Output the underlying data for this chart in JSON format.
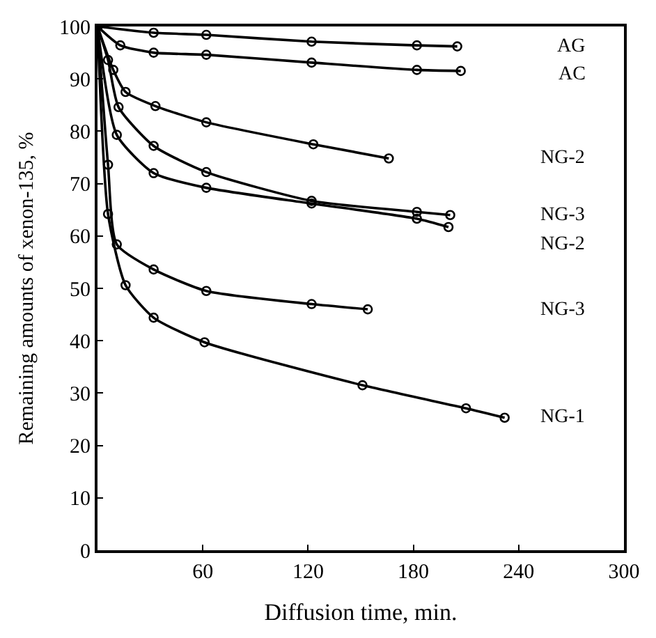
{
  "chart_data": {
    "type": "line",
    "xlabel": "Diffusion time, min.",
    "ylabel": "Remaining amounts of xenon-135, %",
    "xlim": [
      0,
      300
    ],
    "xticks": [
      60,
      120,
      180,
      240,
      300
    ],
    "ylim": [
      0,
      100
    ],
    "yticks": [
      0,
      10,
      20,
      30,
      40,
      50,
      60,
      70,
      80,
      90,
      100
    ],
    "legend": false,
    "marker": "circle",
    "line_style": "solid",
    "series": [
      {
        "name": "AG",
        "color": "#000000",
        "x": [
          0,
          32,
          62,
          122,
          182,
          205
        ],
        "values": [
          100,
          98.8,
          98.4,
          97.1,
          96.4,
          96.2
        ]
      },
      {
        "name": "AC",
        "color": "#000000",
        "x": [
          0,
          13,
          32,
          62,
          122,
          182,
          207
        ],
        "values": [
          100,
          96.4,
          95.0,
          94.6,
          93.1,
          91.7,
          91.5
        ]
      },
      {
        "name": "NG-2",
        "color": "#000000",
        "x": [
          0,
          9,
          16,
          33,
          62,
          123,
          166
        ],
        "values": [
          100,
          91.7,
          87.5,
          84.8,
          81.7,
          77.5,
          74.8
        ]
      },
      {
        "name": "NG-3",
        "color": "#000000",
        "x": [
          0,
          6,
          12,
          32,
          62,
          122,
          182,
          201
        ],
        "values": [
          100,
          93.6,
          84.6,
          77.2,
          72.2,
          66.7,
          64.6,
          64
        ]
      },
      {
        "name": "NG-2",
        "color": "#000000",
        "x": [
          0,
          11,
          32,
          62,
          122,
          182,
          200
        ],
        "values": [
          100,
          79.3,
          72,
          69.2,
          66.2,
          63.3,
          61.7
        ]
      },
      {
        "name": "NG-3",
        "color": "#000000",
        "x": [
          0,
          6,
          11,
          32,
          62,
          122,
          154
        ],
        "values": [
          100,
          73.6,
          58.4,
          53.6,
          49.5,
          47.0,
          46.0
        ]
      },
      {
        "name": "NG-1",
        "color": "#000000",
        "x": [
          0,
          6,
          16,
          32,
          61,
          151,
          210,
          232
        ],
        "values": [
          100,
          64.2,
          50.6,
          44.4,
          39.7,
          31.5,
          27.1,
          25.3
        ]
      }
    ]
  }
}
